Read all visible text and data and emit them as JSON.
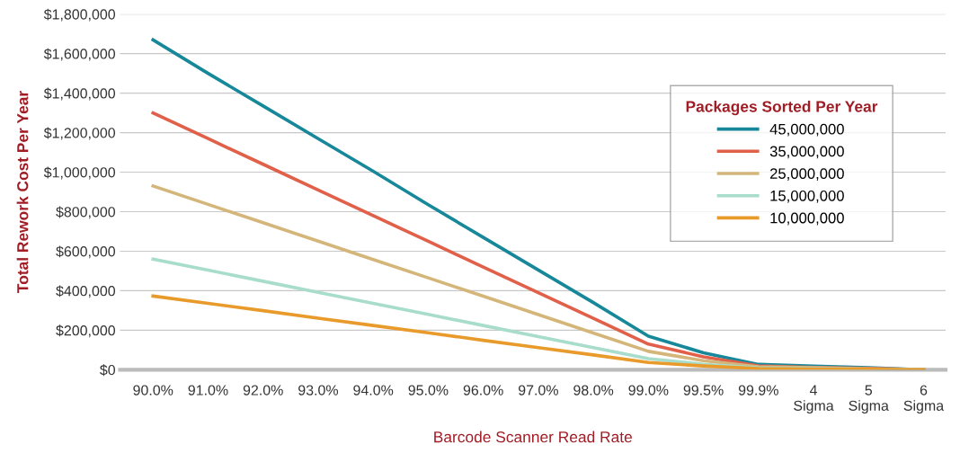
{
  "chart_data": {
    "type": "line",
    "xlabel": "Barcode Scanner Read Rate",
    "ylabel": "Total Rework Cost Per Year",
    "legend_title": "Packages Sorted Per Year",
    "legend": "top right",
    "grid": "y",
    "marker": "none",
    "line_style": "solid",
    "categories": [
      "90.0%",
      "91.0%",
      "92.0%",
      "93.0%",
      "94.0%",
      "95.0%",
      "96.0%",
      "97.0%",
      "98.0%",
      "99.0%",
      "99.5%",
      "99.9%",
      "4\nSigma",
      "5\nSigma",
      "6\nSigma"
    ],
    "ylim": [
      0,
      1800000
    ],
    "yticks": [
      {
        "value": 0,
        "label": "$0"
      },
      {
        "value": 200000,
        "label": "$200,000"
      },
      {
        "value": 400000,
        "label": "$400,000"
      },
      {
        "value": 600000,
        "label": "$600,000"
      },
      {
        "value": 800000,
        "label": "$800,000"
      },
      {
        "value": 1000000,
        "label": "$1,000,000"
      },
      {
        "value": 1200000,
        "label": "$1,200,000"
      },
      {
        "value": 1400000,
        "label": "$1,400,000"
      },
      {
        "value": 1600000,
        "label": "$1,600,000"
      },
      {
        "value": 1800000,
        "label": "$1,800,000"
      }
    ],
    "series": [
      {
        "name": "45,000,000",
        "color": "#17889a",
        "values": [
          1670000,
          1500000,
          1335000,
          1170000,
          1005000,
          835000,
          670000,
          505000,
          340000,
          170000,
          86000,
          27000,
          18000,
          10000,
          0
        ]
      },
      {
        "name": "35,000,000",
        "color": "#e0604a",
        "values": [
          1300000,
          1170000,
          1040000,
          910000,
          780000,
          650000,
          520000,
          390000,
          260000,
          130000,
          65000,
          20000,
          12000,
          7000,
          0
        ]
      },
      {
        "name": "25,000,000",
        "color": "#d4b67a",
        "values": [
          930000,
          837000,
          744000,
          651000,
          558000,
          465000,
          372000,
          279000,
          186000,
          93000,
          46000,
          15000,
          10000,
          5000,
          0
        ]
      },
      {
        "name": "15,000,000",
        "color": "#a8dccb",
        "values": [
          560000,
          504000,
          448000,
          392000,
          336000,
          280000,
          224000,
          168000,
          112000,
          56000,
          28000,
          9000,
          6000,
          3000,
          0
        ]
      },
      {
        "name": "10,000,000",
        "color": "#e89a2a",
        "values": [
          373000,
          336000,
          299000,
          261000,
          224000,
          187000,
          149000,
          112000,
          75000,
          37000,
          19000,
          6000,
          4000,
          2000,
          0
        ]
      }
    ]
  }
}
